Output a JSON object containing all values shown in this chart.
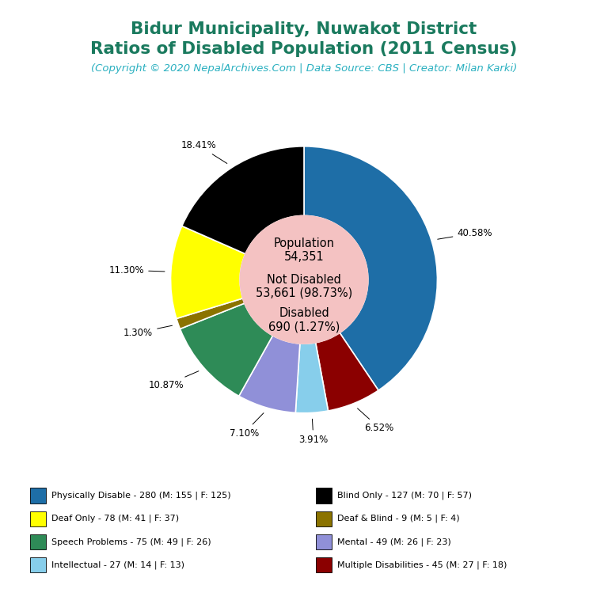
{
  "title_line1": "Bidur Municipality, Nuwakot District",
  "title_line2": "Ratios of Disabled Population (2011 Census)",
  "subtitle": "(Copyright © 2020 NepalArchives.Com | Data Source: CBS | Creator: Milan Karki)",
  "title_color": "#1a7a5e",
  "subtitle_color": "#2ab0c0",
  "center_bg": "#f4c2c2",
  "slices": [
    {
      "label": "Physically Disable - 280 (M: 155 | F: 125)",
      "value": 280,
      "pct": "40.58%",
      "color": "#1e6ea7"
    },
    {
      "label": "Multiple Disabilities - 45 (M: 27 | F: 18)",
      "value": 45,
      "pct": "6.52%",
      "color": "#8b0000"
    },
    {
      "label": "Intellectual - 27 (M: 14 | F: 13)",
      "value": 27,
      "pct": "3.91%",
      "color": "#87ceeb"
    },
    {
      "label": "Mental - 49 (M: 26 | F: 23)",
      "value": 49,
      "pct": "7.10%",
      "color": "#9090d8"
    },
    {
      "label": "Speech Problems - 75 (M: 49 | F: 26)",
      "value": 75,
      "pct": "10.87%",
      "color": "#2e8b57"
    },
    {
      "label": "Deaf & Blind - 9 (M: 5 | F: 4)",
      "value": 9,
      "pct": "1.30%",
      "color": "#8b7300"
    },
    {
      "label": "Deaf Only - 78 (M: 41 | F: 37)",
      "value": 78,
      "pct": "11.30%",
      "color": "#ffff00"
    },
    {
      "label": "Blind Only - 127 (M: 70 | F: 57)",
      "value": 127,
      "pct": "18.41%",
      "color": "#000000"
    }
  ],
  "legend_left": [
    {
      "label": "Physically Disable - 280 (M: 155 | F: 125)",
      "color": "#1e6ea7"
    },
    {
      "label": "Deaf Only - 78 (M: 41 | F: 37)",
      "color": "#ffff00"
    },
    {
      "label": "Speech Problems - 75 (M: 49 | F: 26)",
      "color": "#2e8b57"
    },
    {
      "label": "Intellectual - 27 (M: 14 | F: 13)",
      "color": "#87ceeb"
    }
  ],
  "legend_right": [
    {
      "label": "Blind Only - 127 (M: 70 | F: 57)",
      "color": "#000000"
    },
    {
      "label": "Deaf & Blind - 9 (M: 5 | F: 4)",
      "color": "#8b7300"
    },
    {
      "label": "Mental - 49 (M: 26 | F: 23)",
      "color": "#9090d8"
    },
    {
      "label": "Multiple Disabilities - 45 (M: 27 | F: 18)",
      "color": "#8b0000"
    }
  ],
  "background_color": "#ffffff"
}
